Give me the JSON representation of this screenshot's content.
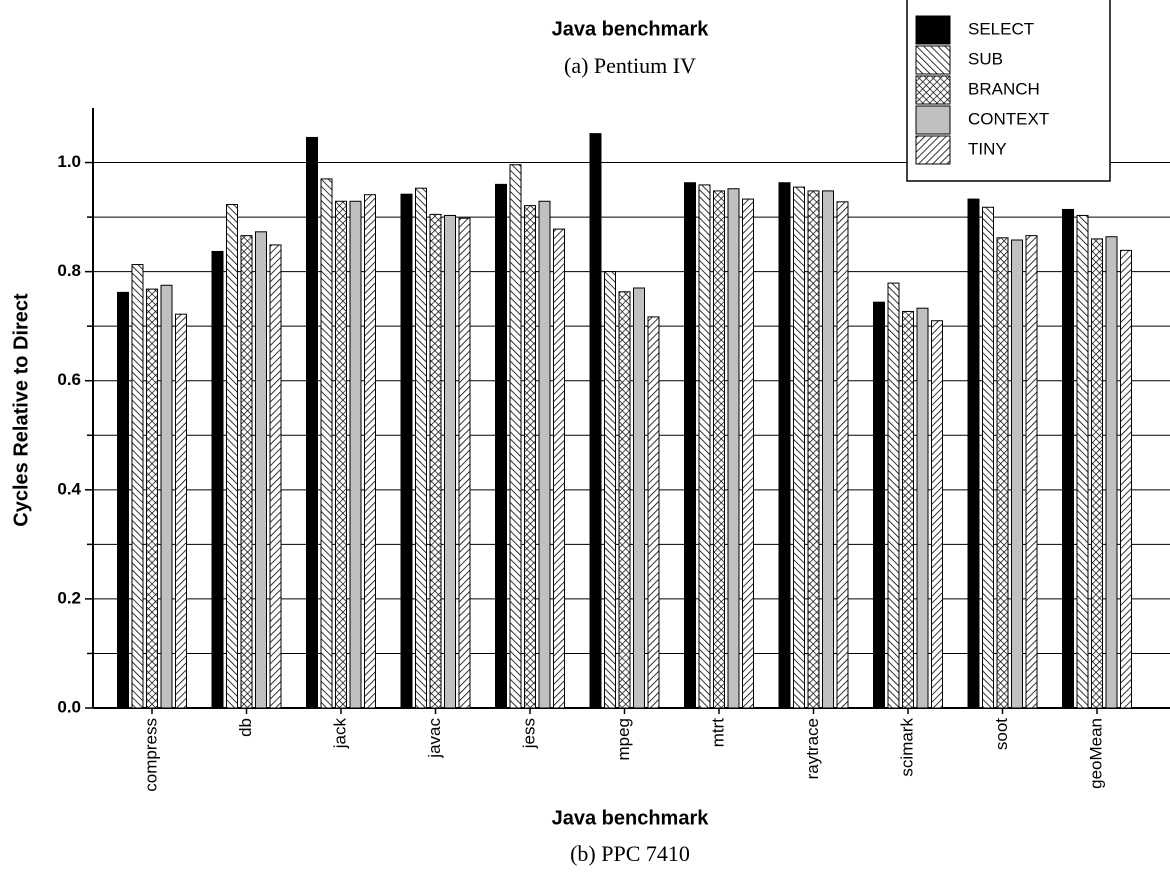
{
  "previous_figure": {
    "x_label": "Java benchmark",
    "caption": "(a) Pentium IV"
  },
  "chart_data": {
    "type": "bar",
    "x_label": "Java benchmark",
    "y_label": "Cycles Relative to Direct",
    "caption": "(b) PPC 7410",
    "categories": [
      "compress",
      "db",
      "jack",
      "javac",
      "jess",
      "mpeg",
      "mtrt",
      "raytrace",
      "scimark",
      "soot",
      "geoMean"
    ],
    "series": [
      {
        "name": "SELECT",
        "color": "#000000",
        "pattern": "solid",
        "values": [
          0.762,
          0.837,
          1.046,
          0.942,
          0.96,
          1.053,
          0.963,
          0.963,
          0.744,
          0.933,
          0.914
        ]
      },
      {
        "name": "SUB",
        "color": "#000000",
        "pattern": "back-diagonal",
        "values": [
          0.813,
          0.923,
          0.97,
          0.953,
          0.996,
          0.8,
          0.959,
          0.955,
          0.779,
          0.918,
          0.903
        ]
      },
      {
        "name": "BRANCH",
        "color": "#000000",
        "pattern": "crosshatch",
        "values": [
          0.768,
          0.866,
          0.929,
          0.905,
          0.921,
          0.763,
          0.948,
          0.948,
          0.727,
          0.862,
          0.86
        ]
      },
      {
        "name": "CONTEXT",
        "color": "#c0c0c0",
        "pattern": "solid",
        "values": [
          0.775,
          0.873,
          0.929,
          0.903,
          0.929,
          0.77,
          0.952,
          0.948,
          0.733,
          0.858,
          0.864
        ]
      },
      {
        "name": "TINY",
        "color": "#000000",
        "pattern": "forward-diagonal",
        "values": [
          0.722,
          0.849,
          0.941,
          0.898,
          0.878,
          0.717,
          0.933,
          0.928,
          0.71,
          0.866,
          0.839
        ]
      }
    ],
    "ylim": [
      0,
      1.1
    ],
    "yticks": [
      {
        "value": 0,
        "label": "0.0"
      },
      0.2,
      0.4,
      0.6,
      0.8,
      {
        "value": 1,
        "label": "1.0"
      }
    ],
    "minor_yticks": [
      0.1,
      0.3,
      0.5,
      0.7,
      0.9
    ],
    "grid": true,
    "legend": "upper right"
  }
}
